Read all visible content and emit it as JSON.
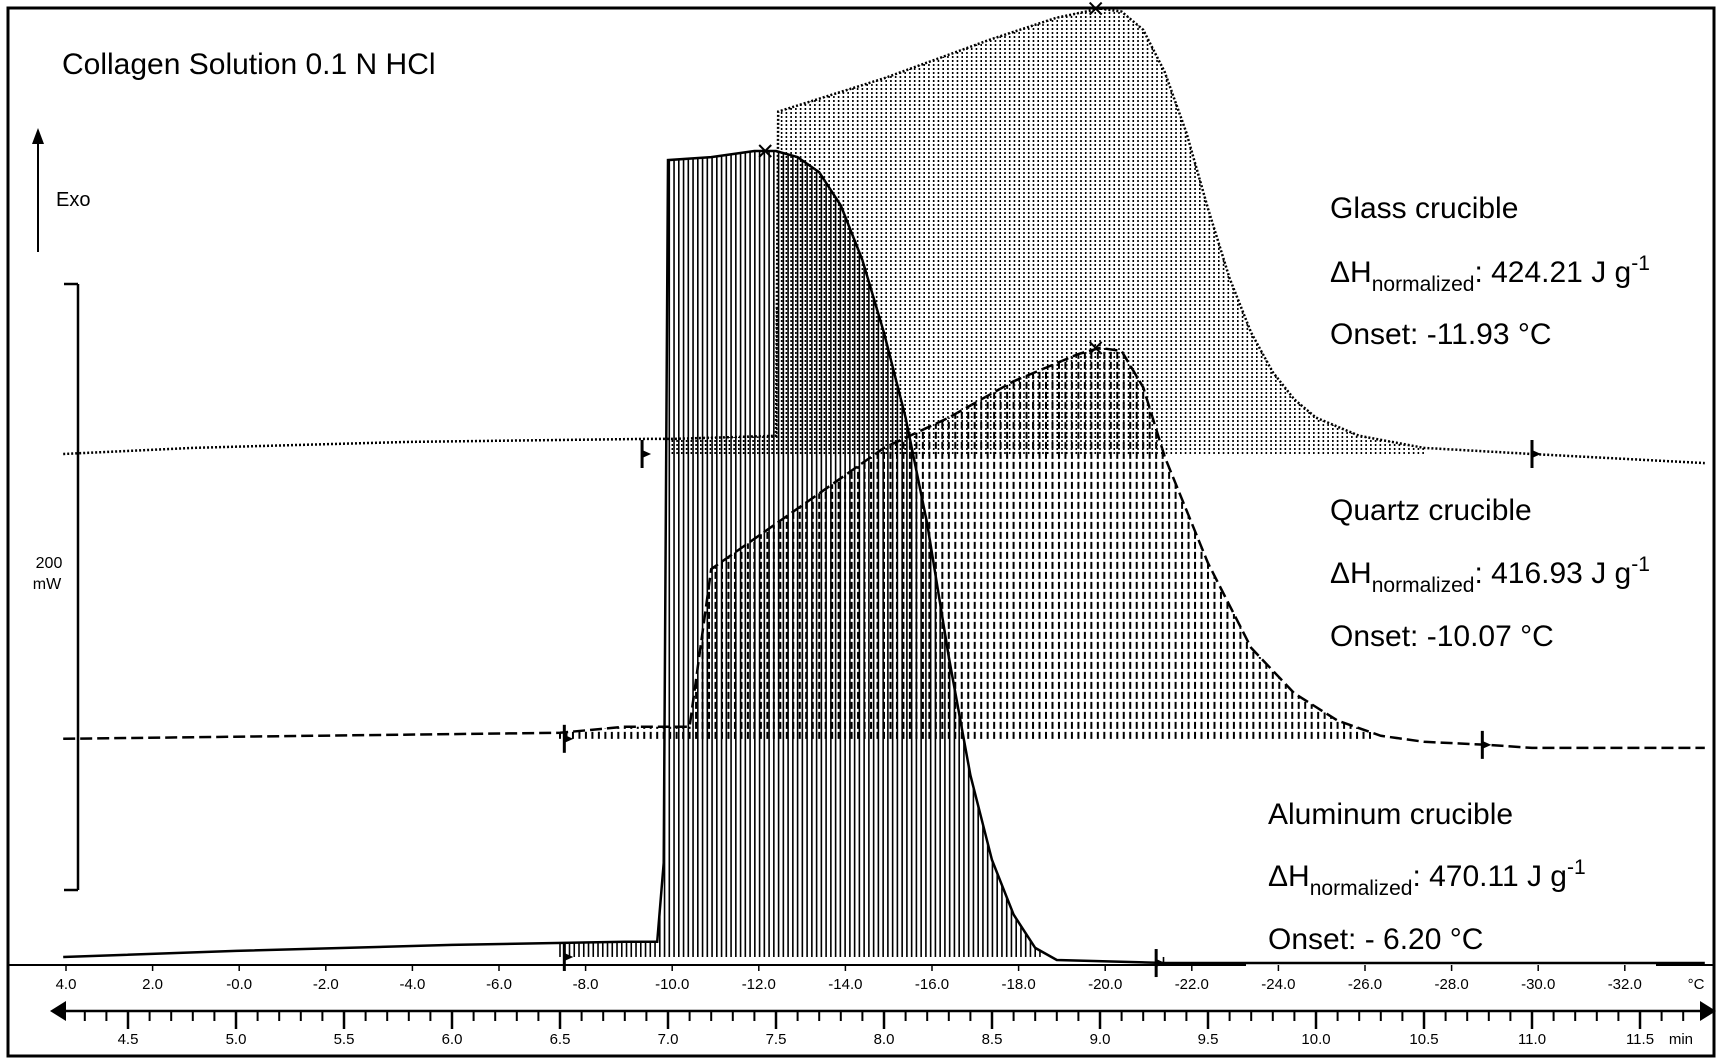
{
  "chart_data": {
    "type": "line",
    "title": "Collagen Solution 0.1 N HCl",
    "direction_label": "Exo",
    "scale_bar": {
      "value": "200",
      "unit": "mW"
    },
    "x_time_axis": {
      "unit": "min",
      "range": [
        4.2,
        11.8
      ],
      "ticks": [
        "4.5",
        "5.0",
        "5.5",
        "6.0",
        "6.5",
        "7.0",
        "7.5",
        "8.0",
        "8.5",
        "9.0",
        "9.5",
        "10.0",
        "10.5",
        "11.0",
        "11.5"
      ]
    },
    "x_temp_axis": {
      "unit": "°C",
      "ticks": [
        "4.0",
        "2.0",
        "-0.0",
        "-2.0",
        "-4.0",
        "-6.0",
        "-8.0",
        "-10.0",
        "-12.0",
        "-14.0",
        "-16.0",
        "-18.0",
        "-20.0",
        "-22.0",
        "-24.0",
        "-26.0",
        "-28.0",
        "-30.0",
        "-32.0"
      ]
    },
    "series": [
      {
        "name": "Glass crucible",
        "line_style": "dotted",
        "baseline_mW": 0,
        "dh_label": "ΔH",
        "dh_sub": "normalized",
        "dh_value": ": 424.21 J g",
        "dh_sup": "-1",
        "onset": "Onset: -11.93 °C",
        "points": [
          [
            4.2,
            0
          ],
          [
            4.8,
            2
          ],
          [
            5.8,
            4
          ],
          [
            6.9,
            5
          ],
          [
            7.02,
            5
          ],
          [
            7.5,
            6
          ],
          [
            7.51,
            113
          ],
          [
            8.0,
            124
          ],
          [
            8.5,
            137
          ],
          [
            8.8,
            144
          ],
          [
            9.0,
            147
          ],
          [
            9.1,
            146
          ],
          [
            9.2,
            140
          ],
          [
            9.3,
            126
          ],
          [
            9.4,
            106
          ],
          [
            9.5,
            81
          ],
          [
            9.6,
            58
          ],
          [
            9.7,
            40
          ],
          [
            9.8,
            27
          ],
          [
            9.9,
            18
          ],
          [
            10.0,
            12
          ],
          [
            10.2,
            6
          ],
          [
            10.5,
            2
          ],
          [
            11.0,
            0
          ],
          [
            11.8,
            -3
          ]
        ],
        "fill_range": [
          7.02,
          11.0
        ]
      },
      {
        "name": "Quartz crucible",
        "line_style": "dashed",
        "baseline_mW": -94,
        "dh_label": "ΔH",
        "dh_sub": "normalized",
        "dh_value": ": 416.93 J g",
        "dh_sup": "-1",
        "onset": "Onset: -10.07 °C",
        "points": [
          [
            4.2,
            -94
          ],
          [
            6.5,
            -92
          ],
          [
            6.8,
            -90
          ],
          [
            7.1,
            -90
          ],
          [
            7.2,
            -38
          ],
          [
            7.4,
            -28
          ],
          [
            7.7,
            -13
          ],
          [
            8.0,
            2
          ],
          [
            8.3,
            12
          ],
          [
            8.6,
            24
          ],
          [
            8.9,
            33
          ],
          [
            9.0,
            35
          ],
          [
            9.1,
            34
          ],
          [
            9.2,
            22
          ],
          [
            9.3,
            -1
          ],
          [
            9.5,
            -36
          ],
          [
            9.7,
            -64
          ],
          [
            9.9,
            -79
          ],
          [
            10.1,
            -88
          ],
          [
            10.3,
            -93
          ],
          [
            10.5,
            -95
          ],
          [
            10.8,
            -96
          ],
          [
            11.0,
            -97
          ],
          [
            11.8,
            -97
          ]
        ],
        "fill_range": [
          6.5,
          10.8
        ]
      },
      {
        "name": "Aluminum crucible",
        "line_style": "solid",
        "baseline_mW": -166,
        "dh_label": "ΔH",
        "dh_sub": "normalized",
        "dh_value": ": 470.11 J g",
        "dh_sup": "-1",
        "onset": "Onset: - 6.20 °C",
        "points": [
          [
            4.2,
            -166
          ],
          [
            5.0,
            -164
          ],
          [
            6.0,
            -162
          ],
          [
            6.8,
            -161
          ],
          [
            6.95,
            -161
          ],
          [
            6.98,
            -135
          ],
          [
            7.0,
            97
          ],
          [
            7.2,
            98
          ],
          [
            7.4,
            100
          ],
          [
            7.5,
            100
          ],
          [
            7.6,
            98
          ],
          [
            7.7,
            93
          ],
          [
            7.8,
            82
          ],
          [
            7.9,
            64
          ],
          [
            8.0,
            40
          ],
          [
            8.1,
            12
          ],
          [
            8.2,
            -23
          ],
          [
            8.3,
            -67
          ],
          [
            8.4,
            -106
          ],
          [
            8.5,
            -134
          ],
          [
            8.6,
            -152
          ],
          [
            8.7,
            -163
          ],
          [
            8.8,
            -167
          ],
          [
            9.3,
            -168
          ],
          [
            11.8,
            -168
          ]
        ],
        "fill_range": [
          6.5,
          9.3
        ]
      }
    ],
    "peak_markers": [
      [
        7.45,
        100
      ],
      [
        8.98,
        147
      ],
      [
        8.98,
        35
      ]
    ],
    "integration_limits": [
      [
        6.88,
        0
      ],
      [
        11.0,
        0
      ],
      [
        6.52,
        -94
      ],
      [
        10.77,
        -96
      ],
      [
        6.52,
        -166
      ],
      [
        9.26,
        -168
      ]
    ],
    "ylim": [
      -190,
      165
    ]
  }
}
